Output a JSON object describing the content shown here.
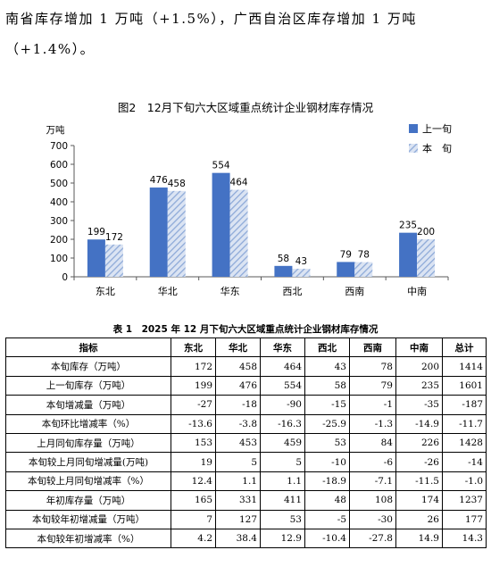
{
  "paragraph": {
    "line1": "南省库存增加 1 万吨（+1.5%），广西自治区库存增加 1 万吨",
    "line2": "（+1.4%）。"
  },
  "figure": {
    "title": "图2　12月下旬六大区域重点统计企业钢材库存情况"
  },
  "chart_data": {
    "type": "bar",
    "title": "图2　12月下旬六大区域重点统计企业钢材库存情况",
    "ylabel": "万吨",
    "xlabel": "",
    "ylim": [
      0,
      700
    ],
    "yticks": [
      0,
      100,
      200,
      300,
      400,
      500,
      600,
      700
    ],
    "categories": [
      "东北",
      "华北",
      "华东",
      "西北",
      "西南",
      "中南"
    ],
    "series": [
      {
        "name": "上一旬",
        "values": [
          199,
          476,
          554,
          58,
          79,
          235
        ],
        "color": "#4472c4",
        "pattern": "solid"
      },
      {
        "name": "本　旬",
        "values": [
          172,
          458,
          464,
          43,
          78,
          200
        ],
        "color": "#a9bde0",
        "pattern": "diagonal-hatch"
      }
    ],
    "legend_position": "top-right",
    "grid": false
  },
  "table": {
    "title": "表 1　2025 年 12 月下旬六大区域重点统计企业钢材库存情况",
    "headers": [
      "指标",
      "东北",
      "华北",
      "华东",
      "西北",
      "西南",
      "中南",
      "总计"
    ],
    "rows": [
      [
        "本旬库存（万吨）",
        "172",
        "458",
        "464",
        "43",
        "78",
        "200",
        "1414"
      ],
      [
        "上一旬库存（万吨）",
        "199",
        "476",
        "554",
        "58",
        "79",
        "235",
        "1601"
      ],
      [
        "本旬增减量（万吨）",
        "-27",
        "-18",
        "-90",
        "-15",
        "-1",
        "-35",
        "-187"
      ],
      [
        "本旬环比增减率（%）",
        "-13.6",
        "-3.8",
        "-16.3",
        "-25.9",
        "-1.3",
        "-14.9",
        "-11.7"
      ],
      [
        "上月同旬库存量（万吨）",
        "153",
        "453",
        "459",
        "53",
        "84",
        "226",
        "1428"
      ],
      [
        "本旬较上月同旬增减量(万吨)",
        "19",
        "5",
        "5",
        "-10",
        "-6",
        "-26",
        "-14"
      ],
      [
        "本旬较上月同旬增减率（%）",
        "12.4",
        "1.1",
        "1.1",
        "-18.9",
        "-7.1",
        "-11.5",
        "-1.0"
      ],
      [
        "年初库存量（万吨）",
        "165",
        "331",
        "411",
        "48",
        "108",
        "174",
        "1237"
      ],
      [
        "本旬较年初增减量（万吨）",
        "7",
        "127",
        "53",
        "-5",
        "-30",
        "26",
        "177"
      ],
      [
        "本旬较年初增减率（%）",
        "4.2",
        "38.4",
        "12.9",
        "-10.4",
        "-27.8",
        "14.9",
        "14.3"
      ]
    ]
  }
}
